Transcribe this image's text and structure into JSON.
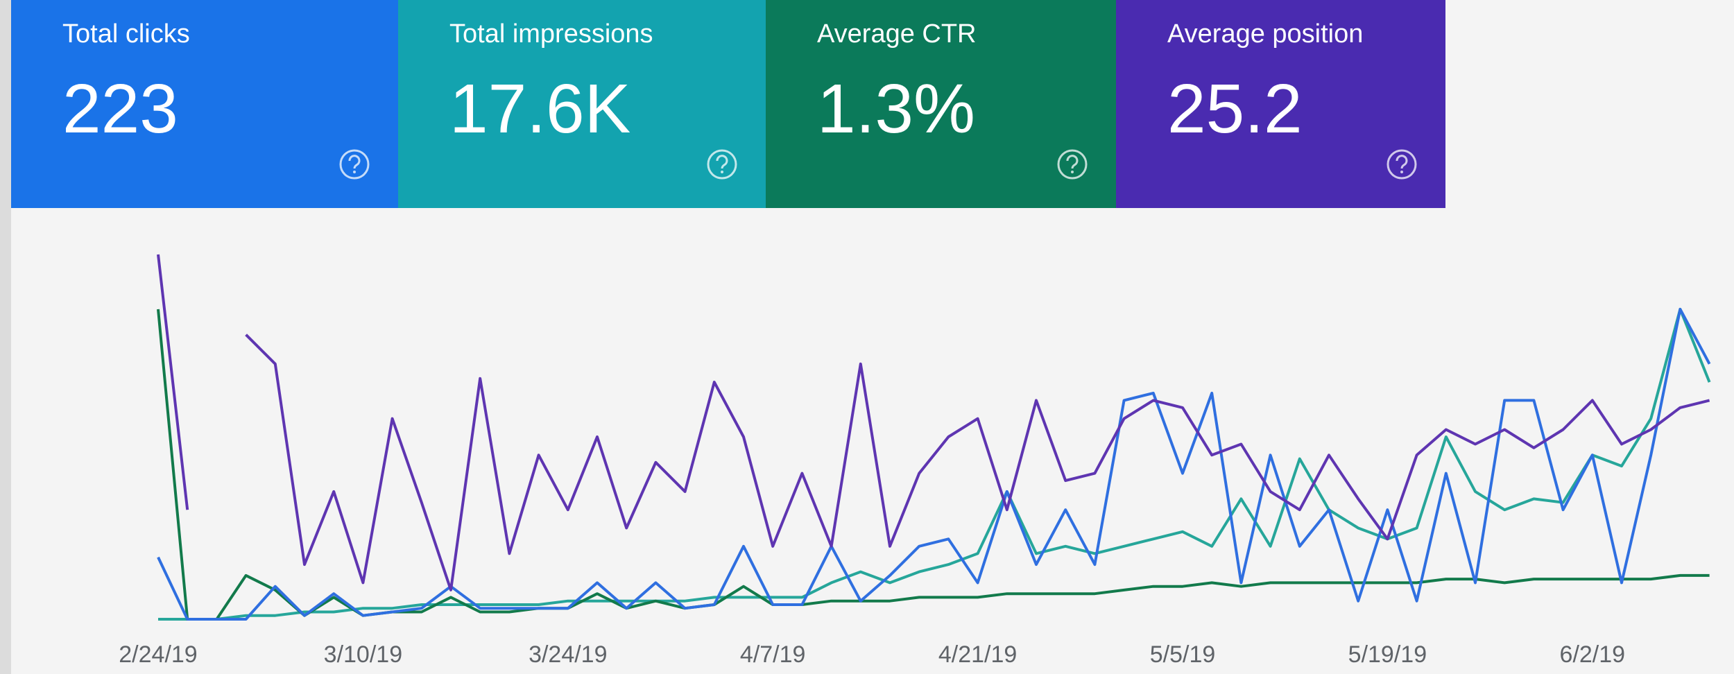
{
  "cards": [
    {
      "label": "Total clicks",
      "value": "223",
      "color": "#1a73e8"
    },
    {
      "label": "Total impressions",
      "value": "17.6K",
      "color": "#13a3af"
    },
    {
      "label": "Average CTR",
      "value": "1.3%",
      "color": "#0b7a5a"
    },
    {
      "label": "Average position",
      "value": "25.2",
      "color": "#4a2bb0"
    }
  ],
  "chart_data": {
    "type": "line",
    "categories": [
      "2/24/19",
      null,
      null,
      null,
      null,
      null,
      null,
      "3/10/19",
      null,
      null,
      null,
      null,
      null,
      null,
      "3/24/19",
      null,
      null,
      null,
      null,
      null,
      null,
      "4/7/19",
      null,
      null,
      null,
      null,
      null,
      null,
      "4/21/19",
      null,
      null,
      null,
      null,
      null,
      null,
      "5/5/19",
      null,
      null,
      null,
      null,
      null,
      null,
      "5/19/19",
      null,
      null,
      null,
      null,
      null,
      null,
      "6/2/19",
      null,
      null,
      null,
      null
    ],
    "series": [
      {
        "color": "#26a69a",
        "values": [
          0,
          0,
          0,
          1,
          1,
          2,
          2,
          3,
          3,
          4,
          4,
          4,
          4,
          4,
          5,
          5,
          5,
          5,
          5,
          6,
          6,
          6,
          6,
          10,
          13,
          10,
          13,
          15,
          18,
          35,
          18,
          20,
          18,
          20,
          22,
          24,
          20,
          33,
          20,
          44,
          30,
          25,
          22,
          25,
          50,
          35,
          30,
          33,
          32,
          45,
          42,
          55,
          85,
          65
        ]
      },
      {
        "color": "#127a4b",
        "values": [
          85,
          0,
          0,
          12,
          8,
          1,
          6,
          1,
          2,
          2,
          6,
          2,
          2,
          3,
          3,
          7,
          3,
          5,
          3,
          4,
          9,
          4,
          4,
          5,
          5,
          5,
          6,
          6,
          6,
          7,
          7,
          7,
          7,
          8,
          9,
          9,
          10,
          9,
          10,
          10,
          10,
          10,
          10,
          10,
          11,
          11,
          10,
          11,
          11,
          11,
          11,
          11,
          12,
          12
        ]
      },
      {
        "color": "#2f6fe0",
        "values": [
          17,
          0,
          0,
          0,
          9,
          1,
          7,
          1,
          2,
          3,
          9,
          3,
          3,
          3,
          3,
          10,
          3,
          10,
          3,
          4,
          20,
          4,
          4,
          20,
          5,
          12,
          20,
          22,
          10,
          35,
          15,
          30,
          15,
          60,
          62,
          40,
          62,
          10,
          45,
          20,
          30,
          5,
          30,
          5,
          40,
          10,
          60,
          60,
          30,
          45,
          10,
          45,
          85,
          70
        ]
      },
      {
        "color": "#5e35b1",
        "values": [
          100,
          30,
          null,
          78,
          70,
          15,
          35,
          10,
          55,
          32,
          8,
          66,
          18,
          45,
          30,
          50,
          25,
          43,
          35,
          65,
          50,
          20,
          40,
          20,
          70,
          20,
          40,
          50,
          55,
          30,
          60,
          38,
          40,
          55,
          60,
          58,
          45,
          48,
          35,
          30,
          45,
          33,
          22,
          45,
          52,
          48,
          52,
          47,
          52,
          60,
          48,
          52,
          58,
          60
        ]
      }
    ]
  }
}
